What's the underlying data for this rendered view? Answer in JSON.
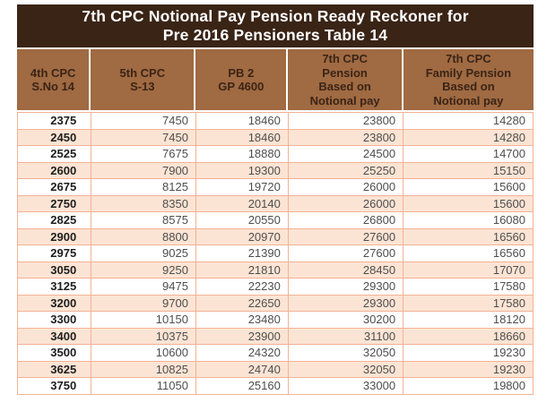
{
  "title": {
    "line1": "7th CPC Notional Pay Pension Ready Reckoner for",
    "line2": "Pre 2016 Pensioners Table 14"
  },
  "table": {
    "columns": [
      {
        "key": "4th-cpc-sno-14",
        "lines": [
          "4th CPC",
          "S.No 14"
        ]
      },
      {
        "key": "5th-cpc-s13",
        "lines": [
          "5th CPC",
          "S-13"
        ]
      },
      {
        "key": "pb2-gp4600",
        "lines": [
          "PB 2",
          "GP 4600"
        ]
      },
      {
        "key": "7th-cpc-pension",
        "lines": [
          "7th CPC",
          "Pension",
          "Based on",
          "Notional pay"
        ]
      },
      {
        "key": "7th-cpc-family-pension",
        "lines": [
          "7th CPC",
          "Family Pension",
          "Based on",
          "Notional pay"
        ]
      }
    ],
    "rows": [
      [
        "2375",
        "7450",
        "18460",
        "23800",
        "14280"
      ],
      [
        "2450",
        "7450",
        "18460",
        "23800",
        "14280"
      ],
      [
        "2525",
        "7675",
        "18880",
        "24500",
        "14700"
      ],
      [
        "2600",
        "7900",
        "19300",
        "25250",
        "15150"
      ],
      [
        "2675",
        "8125",
        "19720",
        "26000",
        "15600"
      ],
      [
        "2750",
        "8350",
        "20140",
        "26000",
        "15600"
      ],
      [
        "2825",
        "8575",
        "20550",
        "26800",
        "16080"
      ],
      [
        "2900",
        "8800",
        "20970",
        "27600",
        "16560"
      ],
      [
        "2975",
        "9025",
        "21390",
        "27600",
        "16560"
      ],
      [
        "3050",
        "9250",
        "21810",
        "28450",
        "17070"
      ],
      [
        "3125",
        "9475",
        "22230",
        "29300",
        "17580"
      ],
      [
        "3200",
        "9700",
        "22650",
        "29300",
        "17580"
      ],
      [
        "3300",
        "10150",
        "23480",
        "30200",
        "18120"
      ],
      [
        "3400",
        "10375",
        "23900",
        "31100",
        "18660"
      ],
      [
        "3500",
        "10600",
        "24320",
        "32050",
        "19230"
      ],
      [
        "3625",
        "10825",
        "24740",
        "32050",
        "19230"
      ],
      [
        "3750",
        "11050",
        "25160",
        "33000",
        "19800"
      ]
    ]
  },
  "colors": {
    "title_bg": "#3a2416",
    "title_text": "#ffffff",
    "header_bg": "#a06a42",
    "header_text": "#3a2416",
    "row_bg": "#ffffff",
    "row_alt_bg": "#fce4d4",
    "border_color": "#f2b295",
    "col1_text": "#1e1e1e",
    "data_text": "#4e4e4e"
  }
}
